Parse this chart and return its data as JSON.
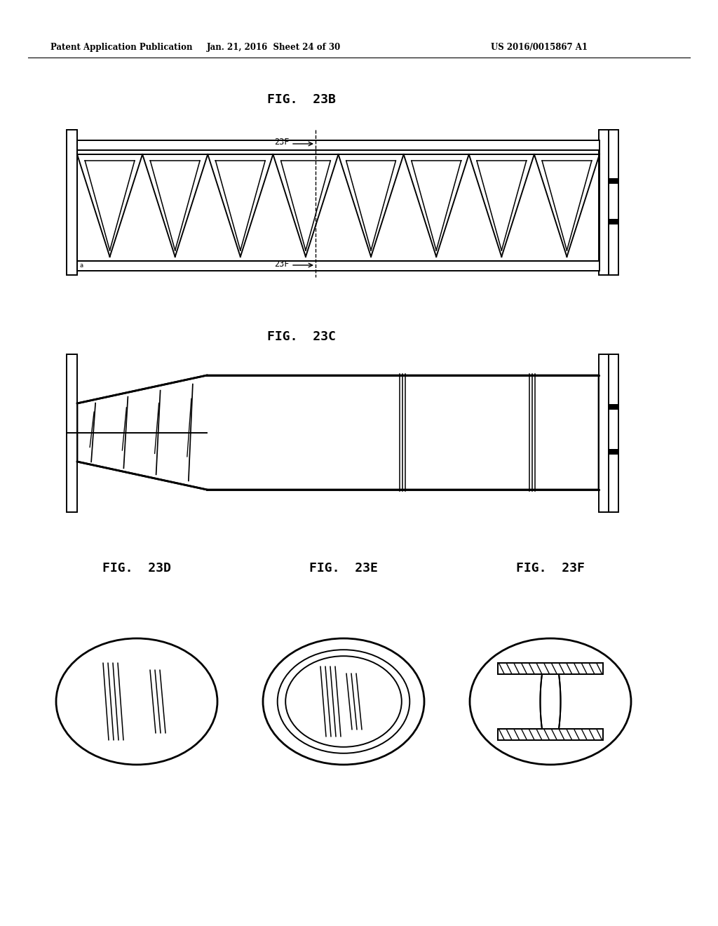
{
  "bg_color": "#ffffff",
  "header_left": "Patent Application Publication",
  "header_mid": "Jan. 21, 2016  Sheet 24 of 30",
  "header_right": "US 2016/0015867 A1",
  "fig23b_title": "FIG.  23B",
  "fig23c_title": "FIG.  23C",
  "fig23d_title": "FIG.  23D",
  "fig23e_title": "FIG.  23E",
  "fig23f_title": "FIG.  23F",
  "label_23f": "23F",
  "line_color": "#000000"
}
